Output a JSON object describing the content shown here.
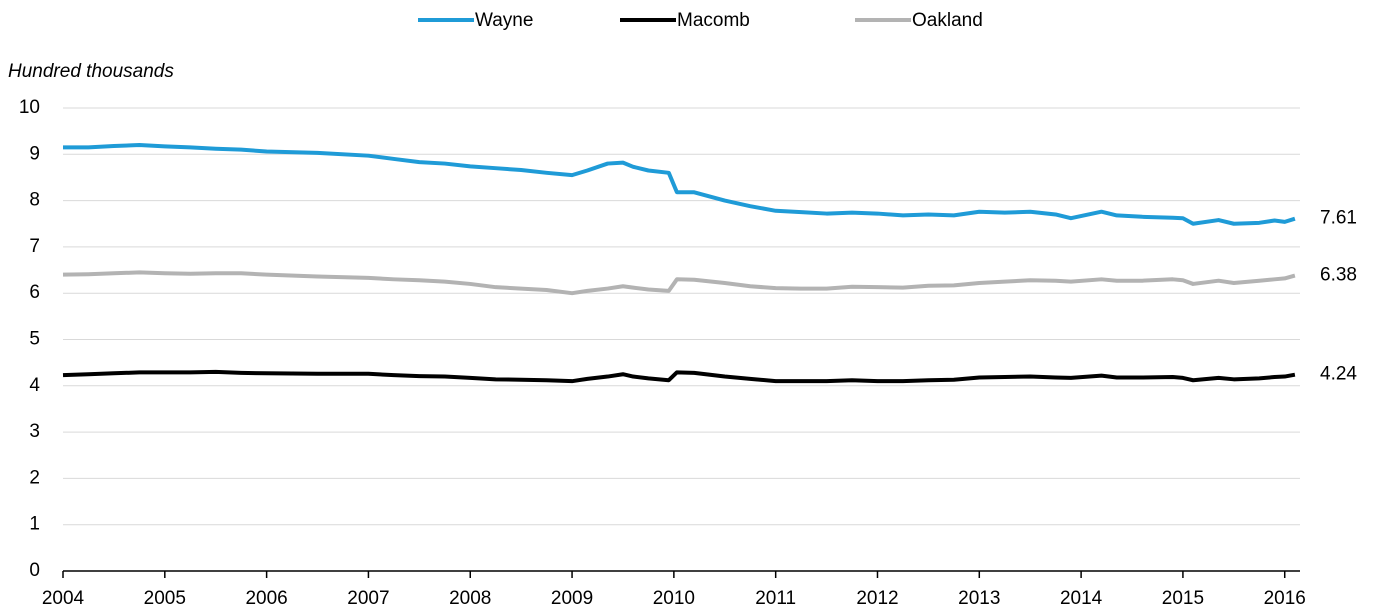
{
  "chart_data": {
    "type": "line",
    "y_label": "Hundred thousands",
    "x": [
      2004.0,
      2004.25,
      2004.5,
      2004.75,
      2005.0,
      2005.25,
      2005.5,
      2005.75,
      2006.0,
      2006.5,
      2007.0,
      2007.25,
      2007.5,
      2007.75,
      2008.0,
      2008.25,
      2008.5,
      2008.75,
      2009.0,
      2009.15,
      2009.35,
      2009.5,
      2009.6,
      2009.75,
      2009.95,
      2010.03,
      2010.2,
      2010.5,
      2010.75,
      2011.0,
      2011.25,
      2011.5,
      2011.75,
      2012.0,
      2012.25,
      2012.5,
      2012.75,
      2013.0,
      2013.25,
      2013.5,
      2013.75,
      2013.9,
      2014.2,
      2014.35,
      2014.6,
      2014.9,
      2015.0,
      2015.1,
      2015.35,
      2015.5,
      2015.75,
      2015.9,
      2016.0,
      2016.1
    ],
    "series": [
      {
        "name": "Wayne",
        "color": "#1f9bd7",
        "values": [
          9.15,
          9.15,
          9.18,
          9.2,
          9.17,
          9.15,
          9.12,
          9.1,
          9.06,
          9.03,
          8.97,
          8.9,
          8.83,
          8.8,
          8.74,
          8.7,
          8.66,
          8.6,
          8.55,
          8.65,
          8.8,
          8.82,
          8.73,
          8.65,
          8.6,
          8.18,
          8.18,
          8.0,
          7.88,
          7.78,
          7.75,
          7.72,
          7.74,
          7.72,
          7.68,
          7.7,
          7.68,
          7.76,
          7.74,
          7.76,
          7.7,
          7.62,
          7.76,
          7.68,
          7.65,
          7.63,
          7.62,
          7.5,
          7.58,
          7.5,
          7.52,
          7.57,
          7.54,
          7.61
        ]
      },
      {
        "name": "Macomb",
        "color": "#000000",
        "values": [
          4.23,
          4.25,
          4.27,
          4.29,
          4.29,
          4.29,
          4.3,
          4.28,
          4.27,
          4.26,
          4.26,
          4.23,
          4.21,
          4.2,
          4.17,
          4.14,
          4.13,
          4.12,
          4.1,
          4.15,
          4.2,
          4.25,
          4.2,
          4.16,
          4.12,
          4.29,
          4.28,
          4.2,
          4.15,
          4.1,
          4.1,
          4.1,
          4.12,
          4.1,
          4.1,
          4.12,
          4.13,
          4.18,
          4.19,
          4.2,
          4.18,
          4.17,
          4.22,
          4.18,
          4.18,
          4.19,
          4.17,
          4.12,
          4.17,
          4.14,
          4.16,
          4.19,
          4.2,
          4.24
        ]
      },
      {
        "name": "Oakland",
        "color": "#b3b3b3",
        "values": [
          6.4,
          6.41,
          6.43,
          6.45,
          6.43,
          6.42,
          6.43,
          6.43,
          6.4,
          6.36,
          6.33,
          6.3,
          6.28,
          6.25,
          6.2,
          6.13,
          6.1,
          6.07,
          6.0,
          6.05,
          6.1,
          6.15,
          6.12,
          6.08,
          6.05,
          6.3,
          6.29,
          6.22,
          6.15,
          6.11,
          6.1,
          6.1,
          6.14,
          6.13,
          6.12,
          6.16,
          6.17,
          6.22,
          6.25,
          6.28,
          6.27,
          6.25,
          6.3,
          6.27,
          6.27,
          6.3,
          6.28,
          6.2,
          6.27,
          6.22,
          6.27,
          6.3,
          6.32,
          6.38
        ]
      }
    ],
    "xlim": [
      2004,
      2016.15
    ],
    "xticks": [
      2004,
      2005,
      2006,
      2007,
      2008,
      2009,
      2010,
      2011,
      2012,
      2013,
      2014,
      2015,
      2016
    ],
    "ylim": [
      0,
      10
    ],
    "yticks": [
      0,
      1,
      2,
      3,
      4,
      5,
      6,
      7,
      8,
      9,
      10
    ],
    "grid": true,
    "legend": "top"
  }
}
